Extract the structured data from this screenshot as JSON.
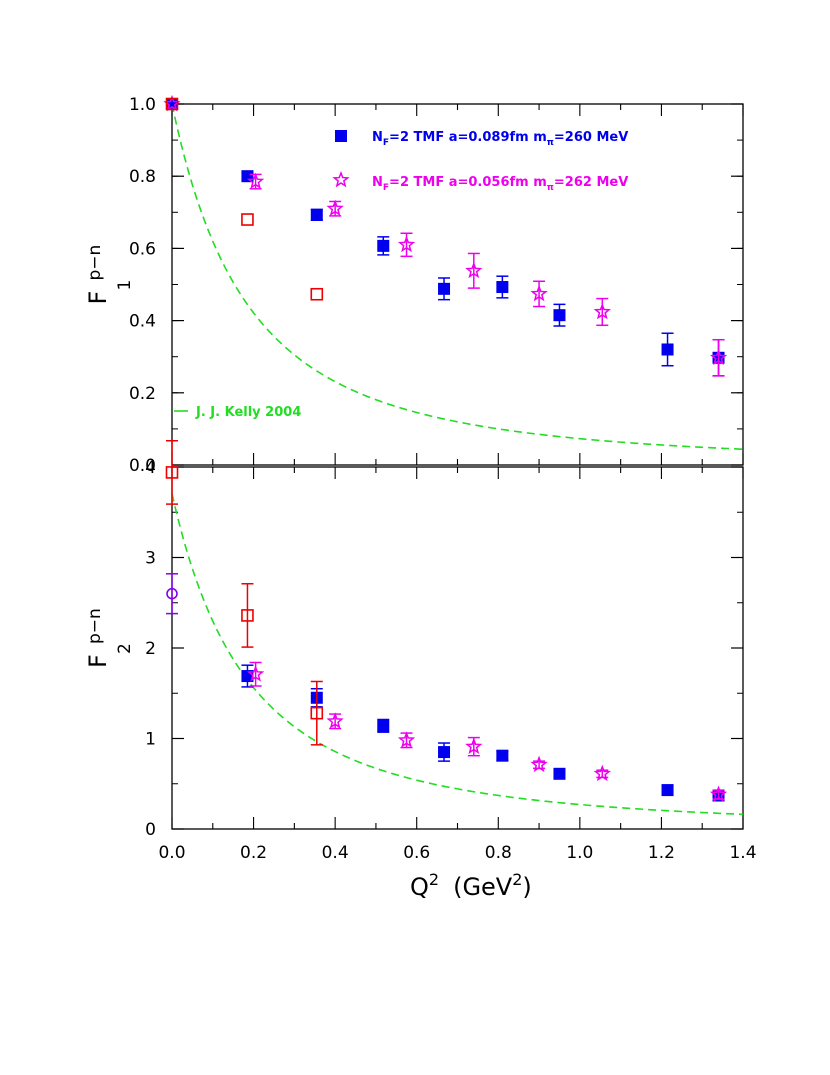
{
  "chart_data": [
    {
      "type": "scatter",
      "panel": "top",
      "ylabel": {
        "main": "F",
        "sub": "1",
        "sup": "p−n"
      },
      "xlim": [
        0,
        1.4
      ],
      "ylim": [
        0,
        1.0
      ],
      "yticks": [
        "0.0",
        "0.2",
        "0.4",
        "0.6",
        "0.8",
        "1.0"
      ],
      "grid": false,
      "legend": [
        {
          "prefix": "N",
          "prefix_sub": "F",
          "text": "=2 TMF  a=0.089fm  m",
          "m_sub": "π",
          "suffix": "=260  MeV",
          "color": "#0000ee",
          "marker": "filled-square"
        },
        {
          "prefix": "N",
          "prefix_sub": "F",
          "text": "=2 TMF  a=0.056fm  m",
          "m_sub": "π",
          "suffix": "=262  MeV",
          "color": "#ee00ee",
          "marker": "open-star"
        }
      ],
      "curve_label": "J. J. Kelly 2004",
      "series": [
        {
          "name": "NF=2 TMF a=0.089fm mπ=260 MeV",
          "color": "#0000ee",
          "marker": "filled-square",
          "points": [
            {
              "x": 0.0,
              "y": 1.0,
              "err": 0.0
            },
            {
              "x": 0.185,
              "y": 0.8,
              "err": 0.01
            },
            {
              "x": 0.355,
              "y": 0.693,
              "err": 0.015
            },
            {
              "x": 0.518,
              "y": 0.607,
              "err": 0.025
            },
            {
              "x": 0.667,
              "y": 0.488,
              "err": 0.03
            },
            {
              "x": 0.81,
              "y": 0.493,
              "err": 0.03
            },
            {
              "x": 0.95,
              "y": 0.415,
              "err": 0.03
            },
            {
              "x": 1.215,
              "y": 0.32,
              "err": 0.045
            },
            {
              "x": 1.34,
              "y": 0.297,
              "err": 0.05
            }
          ]
        },
        {
          "name": "NF=2 TMF a=0.056fm mπ=262 MeV",
          "color": "#ee00ee",
          "marker": "open-star",
          "points": [
            {
              "x": 0.0,
              "y": 1.0,
              "err": 0.0
            },
            {
              "x": 0.205,
              "y": 0.785,
              "err": 0.02
            },
            {
              "x": 0.4,
              "y": 0.71,
              "err": 0.02
            },
            {
              "x": 0.575,
              "y": 0.61,
              "err": 0.032
            },
            {
              "x": 0.74,
              "y": 0.538,
              "err": 0.048
            },
            {
              "x": 0.9,
              "y": 0.474,
              "err": 0.035
            },
            {
              "x": 1.055,
              "y": 0.424,
              "err": 0.037
            },
            {
              "x": 1.34,
              "y": 0.297,
              "err": 0.05
            }
          ]
        },
        {
          "name": "",
          "color": "#ee0000",
          "marker": "open-square",
          "points": [
            {
              "x": 0.0,
              "y": 1.0,
              "err": 0.0
            },
            {
              "x": 0.185,
              "y": 0.68,
              "err": 0.0
            },
            {
              "x": 0.355,
              "y": 0.473,
              "err": 0.0
            }
          ]
        }
      ],
      "curve": {
        "name": "J. J. Kelly 2004",
        "color": "#22dd22",
        "style": "dashed",
        "formula_y0": 1.0,
        "formula_m2": 0.37,
        "xrange": [
          0.0,
          1.4
        ]
      }
    },
    {
      "type": "scatter",
      "panel": "bottom",
      "ylabel": {
        "main": "F",
        "sub": "2",
        "sup": "p−n"
      },
      "xlabel": {
        "main": "Q",
        "sup": "2",
        "unit": "(GeV",
        "unit_sup": "2",
        "unit_close": ")"
      },
      "xlim": [
        0,
        1.4
      ],
      "ylim": [
        0,
        4.0
      ],
      "xticks": [
        "0.0",
        "0.2",
        "0.4",
        "0.6",
        "0.8",
        "1.0",
        "1.2",
        "1.4"
      ],
      "yticks": [
        "0",
        "1",
        "2",
        "3",
        "4"
      ],
      "grid": false,
      "series": [
        {
          "name": "NF=2 TMF a=0.089fm mπ=260 MeV",
          "color": "#0000ee",
          "marker": "filled-square",
          "points": [
            {
              "x": 0.185,
              "y": 1.69,
              "err": 0.12
            },
            {
              "x": 0.355,
              "y": 1.45,
              "err": 0.1
            },
            {
              "x": 0.518,
              "y": 1.14,
              "err": 0.07
            },
            {
              "x": 0.667,
              "y": 0.85,
              "err": 0.1
            },
            {
              "x": 0.81,
              "y": 0.81,
              "err": 0.05
            },
            {
              "x": 0.95,
              "y": 0.61,
              "err": 0.04
            },
            {
              "x": 1.215,
              "y": 0.43,
              "err": 0.05
            },
            {
              "x": 1.34,
              "y": 0.37,
              "err": 0.05
            }
          ]
        },
        {
          "name": "NF=2 TMF a=0.056fm mπ=262 MeV",
          "color": "#ee00ee",
          "marker": "open-star",
          "points": [
            {
              "x": 0.205,
              "y": 1.71,
              "err": 0.13
            },
            {
              "x": 0.4,
              "y": 1.19,
              "err": 0.08
            },
            {
              "x": 0.575,
              "y": 0.98,
              "err": 0.08
            },
            {
              "x": 0.74,
              "y": 0.91,
              "err": 0.1
            },
            {
              "x": 0.9,
              "y": 0.71,
              "err": 0.04
            },
            {
              "x": 1.055,
              "y": 0.61,
              "err": 0.04
            },
            {
              "x": 1.34,
              "y": 0.38,
              "err": 0.05
            }
          ]
        },
        {
          "name": "",
          "color": "#ee0000",
          "marker": "open-square",
          "points": [
            {
              "x": 0.0,
              "y": 3.94,
              "err": 0.35
            },
            {
              "x": 0.185,
              "y": 2.36,
              "err": 0.35
            },
            {
              "x": 0.355,
              "y": 1.28,
              "err": 0.35
            }
          ]
        },
        {
          "name": "",
          "color": "#8800ee",
          "marker": "open-circle",
          "points": [
            {
              "x": 0.0,
              "y": 2.6,
              "err": 0.22
            }
          ]
        }
      ],
      "curve": {
        "name": "J. J. Kelly 2004",
        "color": "#22dd22",
        "style": "dashed",
        "formula_y0": 3.706,
        "formula_m2": 0.37,
        "xrange": [
          0.0,
          1.4
        ]
      }
    }
  ]
}
